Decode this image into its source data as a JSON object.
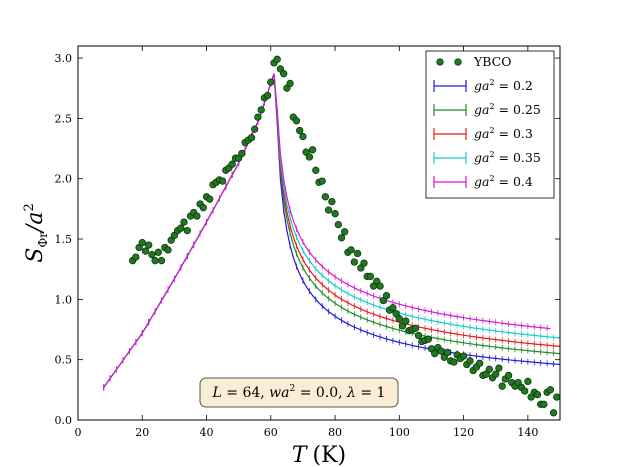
{
  "chart_data": {
    "type": "line",
    "title": "",
    "xlabel": "T (K)",
    "xlabel_var": "T",
    "xlabel_unit": "(K)",
    "ylabel": "S_Φr / a²",
    "ylabel_main": "S",
    "ylabel_sub": "Φr",
    "ylabel_den": "/a",
    "ylabel_sup": "2",
    "xlim": [
      0,
      150
    ],
    "ylim": [
      0,
      3.1
    ],
    "xticks": [
      0,
      20,
      40,
      60,
      80,
      100,
      120,
      140
    ],
    "yticks": [
      0.0,
      0.5,
      1.0,
      1.5,
      2.0,
      2.5,
      3.0
    ],
    "xtick_labels": [
      "0",
      "20",
      "40",
      "60",
      "80",
      "100",
      "120",
      "140"
    ],
    "ytick_labels": [
      "0.0",
      "0.5",
      "1.0",
      "1.5",
      "2.0",
      "2.5",
      "3.0"
    ],
    "grid": false,
    "legend_position": "top-right",
    "annotation": "L = 64, wa² = 0.0, λ = 1",
    "annotation_parts": {
      "l1": "L",
      "e1": " = 64, ",
      "w": "wa",
      "sup": "2",
      "e2": " = 0.0, ",
      "lam": "λ",
      "e3": " = 1"
    },
    "peak": {
      "x": 61.5,
      "y": 2.91
    },
    "rise_points": [
      [
        8,
        0.27
      ],
      [
        20,
        0.72
      ],
      [
        30,
        1.17
      ],
      [
        40,
        1.64
      ],
      [
        50,
        2.13
      ],
      [
        56,
        2.47
      ],
      [
        61.5,
        2.91
      ]
    ],
    "series": [
      {
        "name": "YBCO",
        "kind": "scatter",
        "color": "#1f7a1f",
        "x": [
          17,
          18,
          19,
          20,
          21,
          22,
          23,
          24,
          25,
          26,
          27,
          28,
          29,
          30,
          31,
          32,
          33,
          34,
          35,
          36,
          37,
          38,
          39,
          40,
          41,
          42,
          43,
          44,
          45,
          46,
          47,
          48,
          49,
          50,
          51,
          52,
          53,
          54,
          55,
          56,
          57,
          58,
          59,
          60,
          61,
          62,
          63,
          64,
          65,
          66,
          67,
          68,
          69,
          70,
          71,
          72,
          73,
          74,
          75,
          76,
          77,
          78,
          79,
          80,
          81,
          82,
          83,
          84,
          85,
          86,
          87,
          88,
          89,
          90,
          91,
          92,
          93,
          94,
          95,
          96,
          97,
          98,
          99,
          100,
          101,
          102,
          103,
          104,
          105,
          106,
          107,
          108,
          109,
          110,
          111,
          112,
          113,
          114,
          115,
          116,
          117,
          118,
          119,
          120,
          121,
          122,
          123,
          124,
          125,
          126,
          127,
          128,
          129,
          130,
          131,
          132,
          133,
          134,
          135,
          136,
          137,
          138,
          139,
          140,
          141,
          142,
          143,
          144,
          145,
          146,
          147,
          148,
          149
        ],
        "y": [
          1.32,
          1.35,
          1.43,
          1.47,
          1.4,
          1.45,
          1.37,
          1.32,
          1.39,
          1.32,
          1.43,
          1.41,
          1.49,
          1.53,
          1.57,
          1.59,
          1.64,
          1.57,
          1.69,
          1.72,
          1.69,
          1.79,
          1.76,
          1.85,
          1.83,
          1.95,
          1.97,
          1.99,
          1.98,
          2.07,
          2.09,
          2.12,
          2.17,
          2.17,
          2.21,
          2.3,
          2.32,
          2.34,
          2.41,
          2.51,
          2.57,
          2.67,
          2.69,
          2.8,
          2.96,
          2.99,
          2.91,
          2.87,
          2.75,
          2.79,
          2.51,
          2.48,
          2.4,
          2.35,
          2.22,
          2.18,
          2.24,
          2.07,
          1.97,
          1.98,
          1.85,
          1.74,
          1.81,
          1.71,
          1.62,
          1.51,
          1.56,
          1.39,
          1.41,
          1.31,
          1.38,
          1.26,
          1.3,
          1.19,
          1.19,
          1.11,
          1.15,
          1.11,
          0.99,
          1.03,
          0.91,
          0.93,
          0.88,
          0.84,
          0.78,
          0.82,
          0.74,
          0.75,
          0.76,
          0.7,
          0.65,
          0.66,
          0.67,
          0.59,
          0.55,
          0.6,
          0.57,
          0.52,
          0.56,
          0.49,
          0.48,
          0.54,
          0.51,
          0.53,
          0.46,
          0.49,
          0.41,
          0.44,
          0.47,
          0.37,
          0.38,
          0.42,
          0.35,
          0.38,
          0.43,
          0.28,
          0.34,
          0.37,
          0.31,
          0.28,
          0.31,
          0.27,
          0.24,
          0.32,
          0.19,
          0.23,
          0.21,
          0.13,
          0.13,
          0.23,
          0.25,
          0.06,
          0.19
        ]
      },
      {
        "name": "ga² = 0.2",
        "param": "ga",
        "value": "0.2",
        "kind": "line",
        "color": "#1a1adb",
        "y_at_150": 0.46,
        "tail_start": 62
      },
      {
        "name": "ga² = 0.25",
        "param": "ga",
        "value": "0.25",
        "kind": "line",
        "color": "#228b22",
        "y_at_150": 0.55,
        "tail_start": 62
      },
      {
        "name": "ga² = 0.3",
        "param": "ga",
        "value": "0.3",
        "kind": "line",
        "color": "#e8191a",
        "y_at_150": 0.61,
        "tail_start": 62
      },
      {
        "name": "ga² = 0.35",
        "param": "ga",
        "value": "0.35",
        "kind": "line",
        "color": "#1bc8c8",
        "y_at_150": 0.68,
        "tail_start": 62
      },
      {
        "name": "ga² = 0.4",
        "param": "ga",
        "value": "0.4",
        "kind": "line",
        "color": "#d41ad4",
        "y_at_150": 0.75,
        "x_end": 147,
        "tail_start": 62
      }
    ]
  }
}
